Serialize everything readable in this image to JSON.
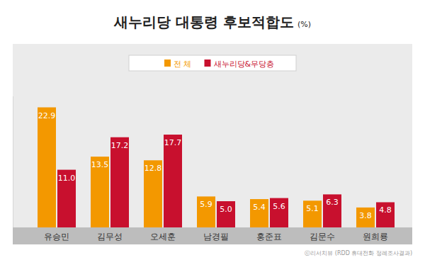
{
  "chart_data": {
    "type": "bar",
    "title": "새누리당 대통령 후보적합도",
    "unit": "(%)",
    "source": "ⓒ리서치뷰 (RDD 휴대전화 정례조사결과)",
    "categories": [
      "유승민",
      "김무성",
      "오세훈",
      "남경필",
      "홍준표",
      "김문수",
      "원희룡"
    ],
    "series": [
      {
        "name": "전 체",
        "color": "#f39800",
        "values": [
          22.9,
          13.5,
          12.8,
          5.9,
          5.4,
          5.1,
          3.8
        ],
        "value_labels": [
          "22.9",
          "13.5",
          "12.8",
          "5.9",
          "5.4",
          "5.1",
          "3.8"
        ]
      },
      {
        "name": "새누리당&무당층",
        "color": "#c8102e",
        "values": [
          11.0,
          17.2,
          17.7,
          5.0,
          5.6,
          6.3,
          4.8
        ],
        "value_labels": [
          "11.0",
          "17.2",
          "17.7",
          "5.0",
          "5.6",
          "6.3",
          "4.8"
        ]
      }
    ],
    "ylim": [
      0,
      25
    ],
    "grid": false,
    "data_labels": true,
    "tick_labels": "x",
    "legend": "top"
  }
}
